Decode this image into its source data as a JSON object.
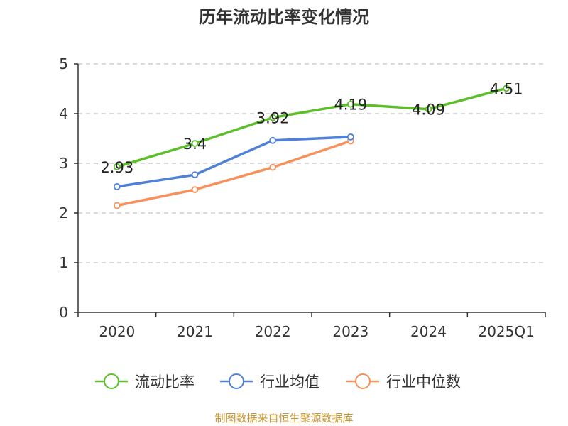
{
  "chart_data": {
    "type": "line",
    "title": "历年流动比率变化情况",
    "categories": [
      "2020",
      "2021",
      "2022",
      "2023",
      "2024",
      "2025Q1"
    ],
    "ylim": [
      0,
      5
    ],
    "yticks": [
      "0",
      "1",
      "2",
      "3",
      "4",
      "5"
    ],
    "grid": true,
    "legend_position": "bottom",
    "series": [
      {
        "name": "流动比率",
        "color": "#5cbf2a",
        "values": [
          2.93,
          3.4,
          3.92,
          4.19,
          4.09,
          4.51
        ],
        "labels": [
          "2.93",
          "3.4",
          "3.92",
          "4.19",
          "4.09",
          "4.51"
        ]
      },
      {
        "name": "行业均值",
        "color": "#4f81d9",
        "values": [
          2.53,
          2.77,
          3.46,
          3.53,
          null,
          null
        ]
      },
      {
        "name": "行业中位数",
        "color": "#f7905a",
        "values": [
          2.15,
          2.47,
          2.92,
          3.45,
          null,
          null
        ]
      }
    ],
    "source": "制图数据来自恒生聚源数据库"
  }
}
